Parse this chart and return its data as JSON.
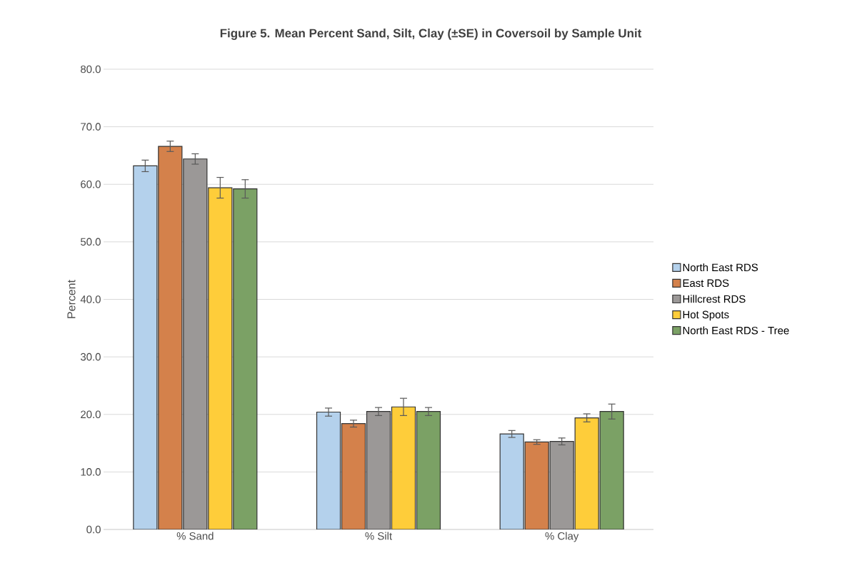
{
  "chart_data": {
    "type": "bar",
    "title": "Figure 5.  Mean Percent Sand, Silt, Clay (±SE) in Coversoil by Sample Unit",
    "ylabel": "Percent",
    "categories": [
      "% Sand",
      "% Silt",
      "% Clay"
    ],
    "series": [
      {
        "name": "North East RDS",
        "color": "#b4d1ec",
        "values": [
          63.2,
          20.4,
          16.6
        ],
        "errors": [
          1.0,
          0.7,
          0.6
        ]
      },
      {
        "name": "East RDS",
        "color": "#d4814b",
        "values": [
          66.6,
          18.4,
          15.2
        ],
        "errors": [
          0.9,
          0.6,
          0.4
        ]
      },
      {
        "name": "Hillcrest RDS",
        "color": "#9b9897",
        "values": [
          64.4,
          20.5,
          15.3
        ],
        "errors": [
          0.9,
          0.7,
          0.6
        ]
      },
      {
        "name": "Hot Spots",
        "color": "#fecd3a",
        "values": [
          59.4,
          21.3,
          19.4
        ],
        "errors": [
          1.8,
          1.5,
          0.7
        ]
      },
      {
        "name": "North East RDS - Tree",
        "color": "#7ba165",
        "values": [
          59.2,
          20.5,
          20.5
        ],
        "errors": [
          1.6,
          0.7,
          1.3
        ]
      }
    ],
    "ylim": [
      0,
      80
    ],
    "yticks": [
      {
        "value": 0,
        "label": "0.0"
      },
      {
        "value": 10,
        "label": "10.0"
      },
      {
        "value": 20,
        "label": "20.0"
      },
      {
        "value": 30,
        "label": "30.0"
      },
      {
        "value": 40,
        "label": "40.0"
      },
      {
        "value": 50,
        "label": "50.0"
      },
      {
        "value": 60,
        "label": "60.0"
      },
      {
        "value": 70,
        "label": "70.0"
      },
      {
        "value": 80,
        "label": "80.0"
      }
    ],
    "grid": "y",
    "legend": "right"
  }
}
